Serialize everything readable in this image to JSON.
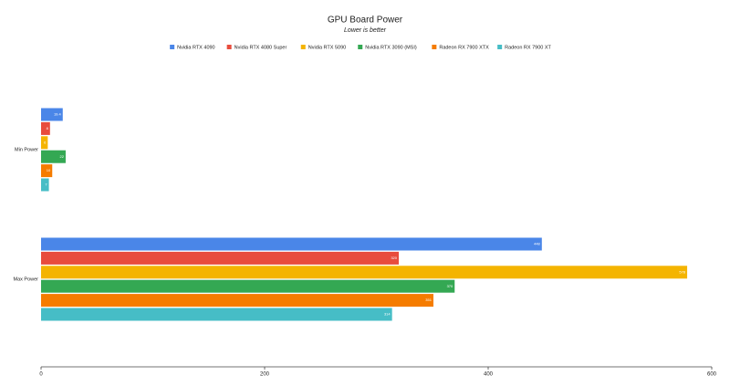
{
  "chart_data": {
    "type": "hbar",
    "title": "GPU Board Power",
    "subtitle": "Lower is better",
    "categories": [
      "Min Power",
      "Max Power"
    ],
    "series": [
      {
        "name": "Nvidia RTX 4090",
        "color": "#4a86e8",
        "values": [
          19.4,
          448
        ]
      },
      {
        "name": "Nvidia RTX 4080 Super",
        "color": "#e84c3d",
        "values": [
          8,
          320
        ]
      },
      {
        "name": "Nvidia RTX 5090",
        "color": "#f4b400",
        "values": [
          6,
          578
        ]
      },
      {
        "name": "Nvidia RTX 3090 (MSI)",
        "color": "#34a853",
        "values": [
          22,
          370
        ]
      },
      {
        "name": "Radeon RX 7900 XTX",
        "color": "#f57c00",
        "values": [
          10,
          351
        ]
      },
      {
        "name": "Radeon RX 7900 XT",
        "color": "#46bdc6",
        "values": [
          7,
          314
        ]
      }
    ],
    "xlim": [
      0,
      600
    ],
    "xticks": [
      0,
      200,
      400,
      600
    ],
    "legend": "top"
  }
}
